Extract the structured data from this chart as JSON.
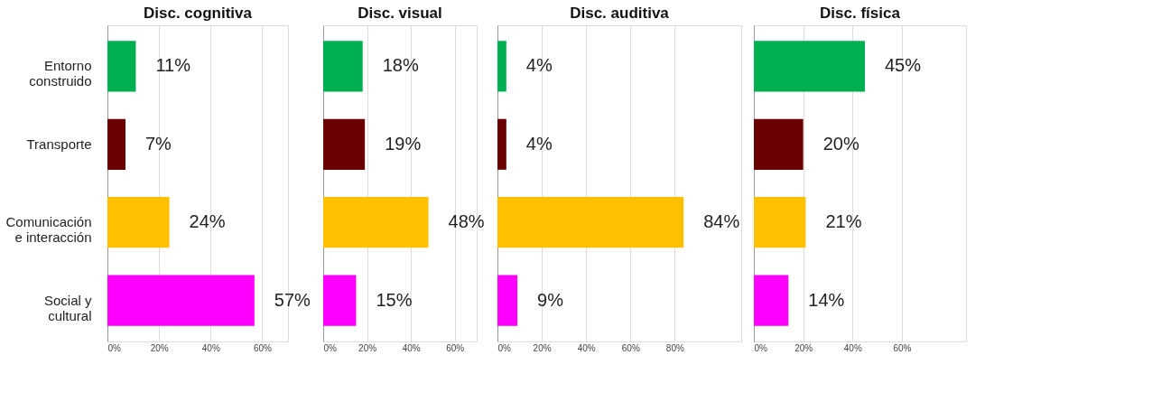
{
  "chart_data": [
    {
      "type": "bar",
      "orientation": "horizontal",
      "title": "Disc. cognitiva",
      "categories": [
        "Entorno construido",
        "Transporte",
        "Comunicación e interacción",
        "Social y cultural"
      ],
      "values": [
        11,
        7,
        24,
        57
      ],
      "value_labels": [
        "11%",
        "7%",
        "24%",
        "57%"
      ],
      "colors": [
        "#00b050",
        "#6b0000",
        "#ffc000",
        "#ff00ff"
      ],
      "xlim": [
        0,
        70
      ],
      "xticks": [
        {
          "value": 0,
          "label": "0%"
        },
        {
          "value": 20,
          "label": "20%"
        },
        {
          "value": 40,
          "label": "40%"
        },
        {
          "value": 60,
          "label": "60%"
        }
      ],
      "grid": "x"
    },
    {
      "type": "bar",
      "orientation": "horizontal",
      "title": "Disc. visual",
      "categories": [
        "Entorno construido",
        "Transporte",
        "Comunicación e interacción",
        "Social y cultural"
      ],
      "values": [
        18,
        19,
        48,
        15
      ],
      "value_labels": [
        "18%",
        "19%",
        "48%",
        "15%"
      ],
      "colors": [
        "#00b050",
        "#6b0000",
        "#ffc000",
        "#ff00ff"
      ],
      "xlim": [
        0,
        70
      ],
      "xticks": [
        {
          "value": 0,
          "label": "0%"
        },
        {
          "value": 20,
          "label": "20%"
        },
        {
          "value": 40,
          "label": "40%"
        },
        {
          "value": 60,
          "label": "60%"
        }
      ],
      "grid": "x",
      "tick_labels": "x"
    },
    {
      "type": "bar",
      "orientation": "horizontal",
      "title": "Disc. auditiva",
      "categories": [
        "Entorno construido",
        "Transporte",
        "Comunicación e interacción",
        "Social y cultural"
      ],
      "values": [
        4,
        4,
        84,
        9
      ],
      "value_labels": [
        "4%",
        "4%",
        "84%",
        "9%"
      ],
      "colors": [
        "#00b050",
        "#6b0000",
        "#ffc000",
        "#ff00ff"
      ],
      "xlim": [
        0,
        110
      ],
      "xticks": [
        {
          "value": 0,
          "label": "0%"
        },
        {
          "value": 20,
          "label": "20%"
        },
        {
          "value": 40,
          "label": "40%"
        },
        {
          "value": 60,
          "label": "60%"
        },
        {
          "value": 80,
          "label": "80%"
        }
      ],
      "grid": "x",
      "tick_labels": "x"
    },
    {
      "type": "bar",
      "orientation": "horizontal",
      "title": "Disc. física",
      "categories": [
        "Entorno construido",
        "Transporte",
        "Comunicación e interacción",
        "Social y cultural"
      ],
      "values": [
        45,
        20,
        21,
        14
      ],
      "value_labels": [
        "45%",
        "20%",
        "21%",
        "14%"
      ],
      "colors": [
        "#00b050",
        "#6b0000",
        "#ffc000",
        "#ff00ff"
      ],
      "xlim": [
        0,
        86
      ],
      "xticks": [
        {
          "value": 0,
          "label": "0%"
        },
        {
          "value": 20,
          "label": "20%"
        },
        {
          "value": 40,
          "label": "40%"
        },
        {
          "value": 60,
          "label": "60%"
        }
      ],
      "grid": "x",
      "tick_labels": "x"
    }
  ]
}
